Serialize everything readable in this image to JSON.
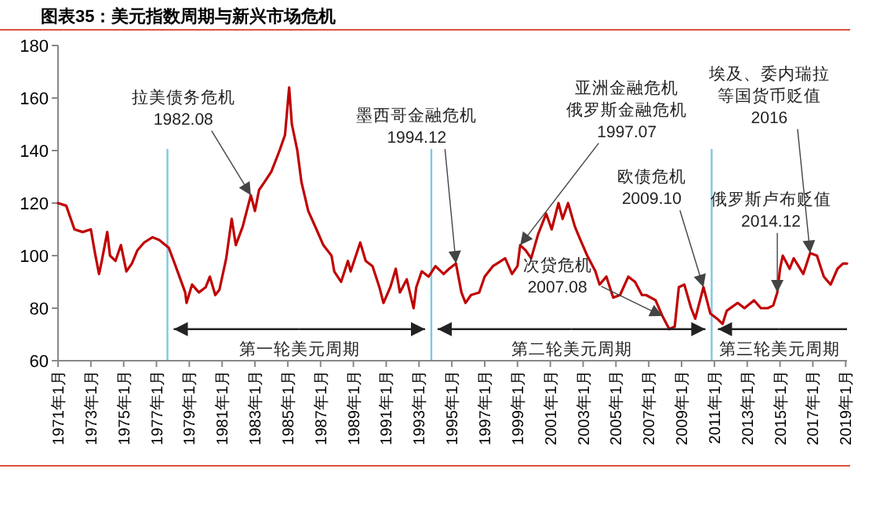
{
  "chart_data": {
    "type": "line",
    "title": "图表35：美元指数周期与新兴市场危机",
    "x": [
      "1971-01",
      "1971-07",
      "1972-01",
      "1972-07",
      "1973-01",
      "1973-04",
      "1973-07",
      "1973-09",
      "1974-01",
      "1974-03",
      "1974-07",
      "1974-11",
      "1975-03",
      "1975-07",
      "1975-11",
      "1976-04",
      "1976-10",
      "1977-03",
      "1977-10",
      "1978-03",
      "1978-10",
      "1978-11",
      "1979-03",
      "1979-08",
      "1980-01",
      "1980-04",
      "1980-08",
      "1980-11",
      "1981-04",
      "1981-08",
      "1981-11",
      "1982-04",
      "1982-10",
      "1983-01",
      "1983-04",
      "1983-08",
      "1984-01",
      "1984-07",
      "1984-11",
      "1985-02",
      "1985-04",
      "1985-08",
      "1985-11",
      "1986-04",
      "1986-10",
      "1987-03",
      "1987-09",
      "1987-11",
      "1988-04",
      "1988-09",
      "1988-11",
      "1989-06",
      "1989-10",
      "1990-03",
      "1990-08",
      "1990-11",
      "1991-04",
      "1991-08",
      "1991-11",
      "1992-04",
      "1992-09",
      "1992-11",
      "1993-03",
      "1993-08",
      "1994-01",
      "1994-07",
      "1994-11",
      "1995-04",
      "1995-08",
      "1995-11",
      "1996-03",
      "1996-09",
      "1997-01",
      "1997-07",
      "1997-10",
      "1998-04",
      "1998-09",
      "1999-01",
      "1999-03",
      "1999-07",
      "1999-11",
      "2000-04",
      "2000-10",
      "2001-02",
      "2001-07",
      "2001-10",
      "2002-02",
      "2002-07",
      "2002-11",
      "2003-04",
      "2003-10",
      "2004-01",
      "2004-06",
      "2004-11",
      "2005-04",
      "2005-10",
      "2006-03",
      "2006-08",
      "2006-11",
      "2007-06",
      "2007-11",
      "2008-04",
      "2008-08",
      "2008-11",
      "2009-03",
      "2009-08",
      "2009-11",
      "2010-05",
      "2010-10",
      "2011-03",
      "2011-07",
      "2011-10",
      "2012-06",
      "2012-11",
      "2013-06",
      "2013-11",
      "2014-04",
      "2014-08",
      "2014-11",
      "2015-01",
      "2015-03",
      "2015-08",
      "2015-11",
      "2016-06",
      "2016-11",
      "2017-04",
      "2017-09",
      "2018-02",
      "2018-07",
      "2018-11",
      "2019-02"
    ],
    "series": [
      {
        "color": "#c00000",
        "values": [
          120,
          119,
          110,
          109,
          110,
          101,
          93,
          98,
          109,
          100,
          98,
          104,
          94,
          97,
          102,
          105,
          107,
          106,
          103,
          96,
          86,
          82,
          89,
          86,
          88,
          92,
          85,
          87,
          99,
          114,
          104,
          111,
          123,
          117,
          125,
          128,
          132,
          140,
          146,
          164,
          150,
          140,
          128,
          117,
          110,
          104,
          100,
          94,
          90,
          98,
          94,
          105,
          98,
          96,
          88,
          82,
          88,
          95,
          86,
          91,
          80,
          88,
          94,
          92,
          96,
          93,
          95,
          97,
          86,
          82,
          85,
          86,
          92,
          96,
          97,
          99,
          93,
          96,
          104,
          102,
          99,
          108,
          116,
          110,
          120,
          114,
          120,
          111,
          106,
          100,
          94,
          89,
          92,
          84,
          85,
          92,
          90,
          85,
          85,
          83,
          77,
          72,
          73,
          88,
          89,
          80,
          76,
          88,
          78,
          76,
          74,
          79,
          82,
          80,
          83,
          80,
          80,
          81,
          86,
          95,
          100,
          95,
          99,
          93,
          101,
          100,
          92,
          89,
          95,
          97,
          97
        ]
      }
    ],
    "xlim": [
      "1971-01",
      "2019-02"
    ],
    "xticks": [
      {
        "value": "1971-01",
        "label": "1971年1月"
      },
      {
        "value": "1973-01",
        "label": "1973年1月"
      },
      {
        "value": "1975-01",
        "label": "1975年1月"
      },
      {
        "value": "1977-01",
        "label": "1977年1月"
      },
      {
        "value": "1979-01",
        "label": "1979年1月"
      },
      {
        "value": "1981-01",
        "label": "1981年1月"
      },
      {
        "value": "1983-01",
        "label": "1983年1月"
      },
      {
        "value": "1985-01",
        "label": "1985年1月"
      },
      {
        "value": "1987-01",
        "label": "1987年1月"
      },
      {
        "value": "1989-01",
        "label": "1989年1月"
      },
      {
        "value": "1991-01",
        "label": "1991年1月"
      },
      {
        "value": "1993-01",
        "label": "1993年1月"
      },
      {
        "value": "1995-01",
        "label": "1995年1月"
      },
      {
        "value": "1997-01",
        "label": "1997年1月"
      },
      {
        "value": "1999-01",
        "label": "1999年1月"
      },
      {
        "value": "2001-01",
        "label": "2001年1月"
      },
      {
        "value": "2003-01",
        "label": "2003年1月"
      },
      {
        "value": "2005-01",
        "label": "2005年1月"
      },
      {
        "value": "2007-01",
        "label": "2007年1月"
      },
      {
        "value": "2009-01",
        "label": "2009年1月"
      },
      {
        "value": "2011-01",
        "label": "2011年1月"
      },
      {
        "value": "2013-01",
        "label": "2013年1月"
      },
      {
        "value": "2015-01",
        "label": "2015年1月"
      },
      {
        "value": "2017-01",
        "label": "2017年1月"
      },
      {
        "value": "2019-01",
        "label": "2019年1月"
      }
    ],
    "ylim": [
      60,
      180
    ],
    "yticks": [
      60,
      80,
      100,
      120,
      140,
      160,
      180
    ],
    "ref_lines": [
      {
        "axis": "x",
        "value": "1977-09",
        "color": "#7fc8e0"
      },
      {
        "axis": "x",
        "value": "1993-10",
        "color": "#7fc8e0"
      },
      {
        "axis": "x",
        "value": "2010-11",
        "color": "#7fc8e0"
      }
    ],
    "annotations": [
      {
        "text": "拉美债务危机\n1982.08",
        "x": "1982-10",
        "y": 123
      },
      {
        "text": "墨西哥金融危机\n1994.12",
        "x": "1995-04",
        "y": 97
      },
      {
        "text": "亚洲金融危机俄罗斯金融危机\n1997.07",
        "x": "1999-03",
        "y": 104
      },
      {
        "text": "欧债危机\n2009.10",
        "x": "2010-05",
        "y": 88
      },
      {
        "text": "俄罗斯卢布贬值\n2014.12",
        "x": "2014-11",
        "y": 86
      },
      {
        "text": "埃及、委内瑞拉等国货币贬值\n2016",
        "x": "2016-11",
        "y": 101
      },
      {
        "text": "次贷危机\n2007.08",
        "x": "2007-11",
        "y": 77
      },
      {
        "text": "第一轮美元周期",
        "x": "1977-09",
        "y": 72
      },
      {
        "text": "第二轮美元周期",
        "x": "1993-10",
        "y": 72
      },
      {
        "text": "第三轮美元周期",
        "x": "2010-11",
        "y": 72
      }
    ]
  }
}
